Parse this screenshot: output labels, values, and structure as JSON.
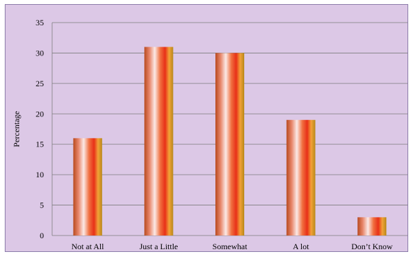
{
  "chart_data": {
    "type": "bar",
    "title": "",
    "xlabel": "",
    "ylabel": "Percentage",
    "categories": [
      "Not at All",
      "Just a Little",
      "Somewhat",
      "A lot",
      "Don’t Know"
    ],
    "values": [
      16,
      31,
      30,
      19,
      3
    ],
    "ylim": [
      0,
      35
    ],
    "yticks": [
      0,
      5,
      10,
      15,
      20,
      25,
      30,
      35
    ],
    "grid": true,
    "legend": "none",
    "colors": {
      "background": "#dcc8e6",
      "bar_gradient": [
        "#b84a20",
        "#e8866a",
        "#fbe9e6",
        "#f07040",
        "#e83018",
        "#f2a238",
        "#b88818"
      ]
    }
  }
}
